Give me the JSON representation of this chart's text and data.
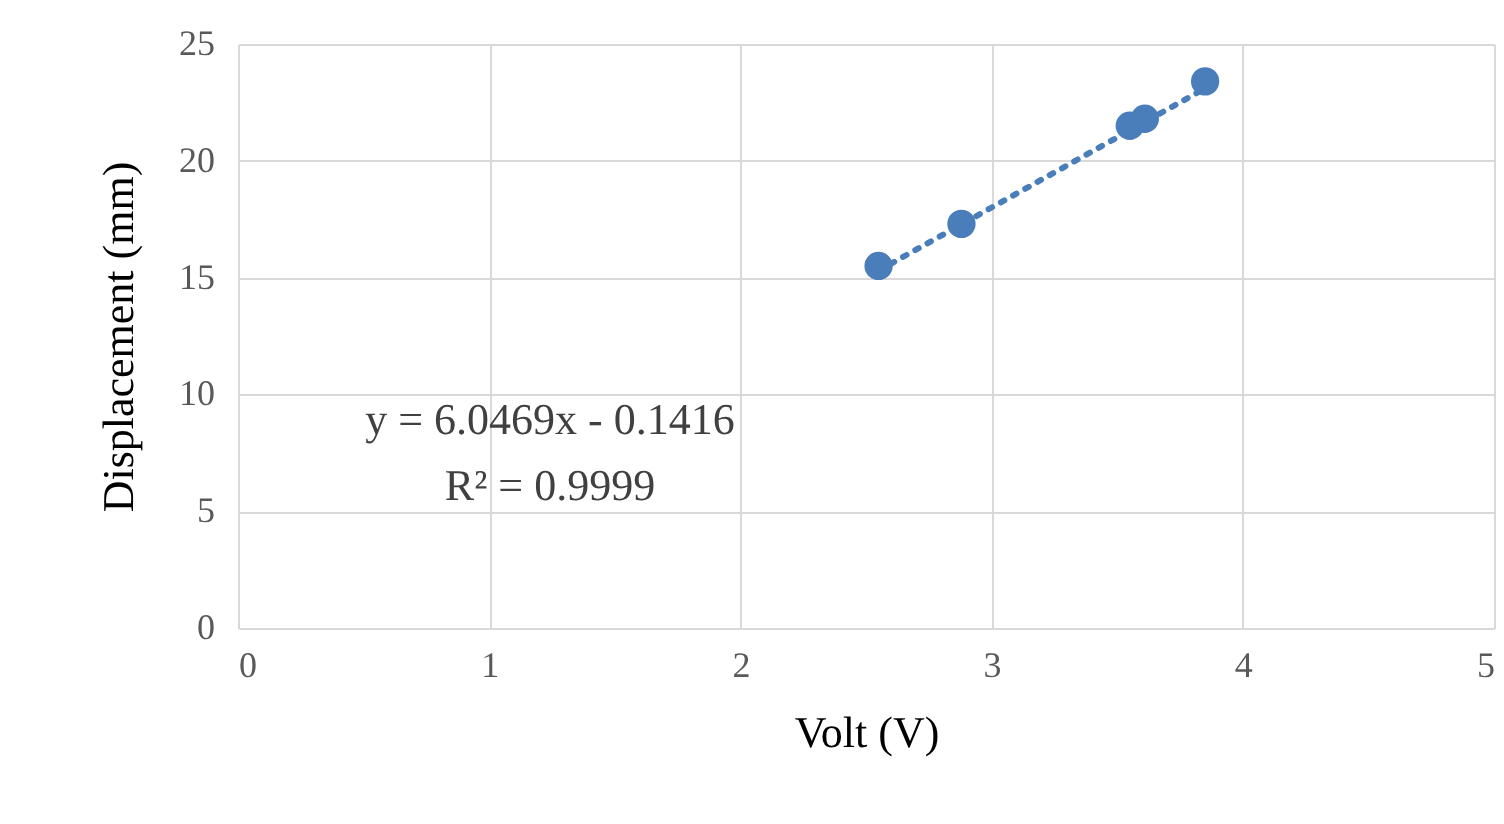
{
  "chart_data": {
    "type": "scatter",
    "xlabel": "Volt (V)",
    "ylabel": "Displacement (mm)",
    "xlim": [
      0,
      5
    ],
    "xticks": [
      0,
      1,
      2,
      3,
      4,
      5
    ],
    "ylim": [
      0,
      25
    ],
    "yticks": [
      0,
      5,
      10,
      15,
      20,
      25
    ],
    "grid": true,
    "marker": "circle",
    "series": [
      {
        "color": "#4a7ebb",
        "x": [
          2.55,
          2.88,
          3.55,
          3.61,
          3.85
        ],
        "values": [
          15.5,
          17.3,
          21.5,
          21.8,
          23.4
        ]
      },
      {
        "type": "line",
        "color": "#4a7ebb",
        "line_style": "dotted",
        "marker": "none",
        "x": [
          2.55,
          3.85
        ],
        "values": [
          15.3,
          23.1
        ]
      }
    ],
    "annotations": [
      "y = 6.0469x - 0.1416",
      "R² = 0.9999"
    ]
  }
}
